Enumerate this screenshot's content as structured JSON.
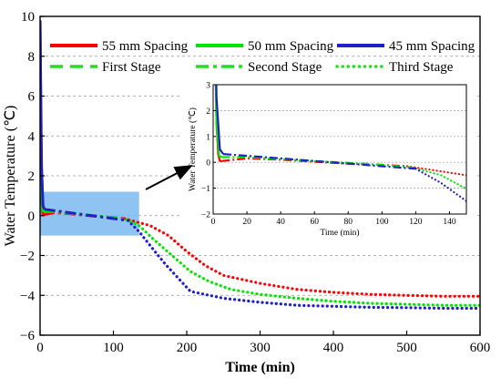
{
  "chart_data": [
    {
      "type": "line",
      "xlabel": "Time (min)",
      "ylabel": "Water Temperature (℃)",
      "xlim": [
        0,
        600
      ],
      "ylim": [
        -6,
        10
      ],
      "xticks": [
        0,
        100,
        200,
        300,
        400,
        500,
        600
      ],
      "yticks": [
        -6,
        -4,
        -2,
        0,
        2,
        4,
        6,
        8,
        10
      ],
      "grid": "horizontal dashed",
      "legend": {
        "placement": "top-right",
        "entries": [
          {
            "label": "55 mm Spacing",
            "color": "#ff0000",
            "style": "solid"
          },
          {
            "label": "50 mm Spacing",
            "color": "#00e600",
            "style": "solid"
          },
          {
            "label": "45 mm Spacing",
            "color": "#2020c8",
            "style": "solid"
          },
          {
            "label": "First Stage",
            "color": "#22dd22",
            "style": "dash"
          },
          {
            "label": "Second Stage",
            "color": "#22dd22",
            "style": "dashdot"
          },
          {
            "label": "Third Stage",
            "color": "#22dd22",
            "style": "dot"
          }
        ]
      },
      "highlight_region": {
        "x": [
          0,
          135
        ],
        "y": [
          -1,
          1.2
        ],
        "color": "#7ab8f0"
      },
      "series": [
        {
          "name": "55 mm Spacing",
          "color": "#ff0000",
          "first_stage": [
            [
              0,
              9.8
            ],
            [
              1,
              5
            ],
            [
              2,
              1.5
            ],
            [
              3,
              0.3
            ],
            [
              4,
              0.05
            ],
            [
              5,
              0.05
            ]
          ],
          "second_stage": [
            [
              5,
              0.05
            ],
            [
              20,
              0.15
            ],
            [
              40,
              0.1
            ],
            [
              60,
              0.02
            ],
            [
              80,
              -0.05
            ],
            [
              100,
              -0.1
            ],
            [
              115,
              -0.15
            ]
          ],
          "third_stage": [
            [
              115,
              -0.15
            ],
            [
              130,
              -0.3
            ],
            [
              150,
              -0.5
            ],
            [
              175,
              -1.0
            ],
            [
              200,
              -1.8
            ],
            [
              225,
              -2.5
            ],
            [
              250,
              -3.0
            ],
            [
              300,
              -3.4
            ],
            [
              350,
              -3.7
            ],
            [
              400,
              -3.85
            ],
            [
              450,
              -3.95
            ],
            [
              500,
              -4.0
            ],
            [
              550,
              -4.05
            ],
            [
              600,
              -4.05
            ]
          ]
        },
        {
          "name": "50 mm Spacing",
          "color": "#00e600",
          "first_stage": [
            [
              0,
              9.8
            ],
            [
              1,
              5
            ],
            [
              2,
              1.5
            ],
            [
              3.5,
              0.25
            ],
            [
              5,
              0.2
            ]
          ],
          "second_stage": [
            [
              5,
              0.2
            ],
            [
              20,
              0.2
            ],
            [
              40,
              0.12
            ],
            [
              60,
              0.05
            ],
            [
              80,
              -0.02
            ],
            [
              100,
              -0.1
            ],
            [
              118,
              -0.2
            ]
          ],
          "third_stage": [
            [
              118,
              -0.2
            ],
            [
              135,
              -0.5
            ],
            [
              155,
              -1.2
            ],
            [
              180,
              -2.0
            ],
            [
              205,
              -2.8
            ],
            [
              230,
              -3.3
            ],
            [
              260,
              -3.7
            ],
            [
              300,
              -3.95
            ],
            [
              350,
              -4.15
            ],
            [
              400,
              -4.3
            ],
            [
              450,
              -4.4
            ],
            [
              500,
              -4.45
            ],
            [
              550,
              -4.5
            ],
            [
              600,
              -4.5
            ]
          ]
        },
        {
          "name": "45 mm Spacing",
          "color": "#2020c8",
          "first_stage": [
            [
              0,
              9.8
            ],
            [
              1,
              6
            ],
            [
              2,
              2.5
            ],
            [
              4,
              0.5
            ],
            [
              6,
              0.32
            ]
          ],
          "second_stage": [
            [
              6,
              0.32
            ],
            [
              20,
              0.25
            ],
            [
              40,
              0.15
            ],
            [
              60,
              0.05
            ],
            [
              80,
              -0.05
            ],
            [
              100,
              -0.15
            ],
            [
              120,
              -0.25
            ]
          ],
          "third_stage": [
            [
              120,
              -0.25
            ],
            [
              135,
              -0.8
            ],
            [
              150,
              -1.5
            ],
            [
              170,
              -2.4
            ],
            [
              190,
              -3.2
            ],
            [
              205,
              -3.8
            ],
            [
              250,
              -4.15
            ],
            [
              300,
              -4.35
            ],
            [
              350,
              -4.5
            ],
            [
              400,
              -4.55
            ],
            [
              450,
              -4.6
            ],
            [
              500,
              -4.62
            ],
            [
              550,
              -4.65
            ],
            [
              600,
              -4.65
            ]
          ]
        }
      ]
    },
    {
      "type": "line",
      "inset": true,
      "xlabel": "Time (min)",
      "ylabel": "Water Temperature (℃)",
      "xlim": [
        0,
        150
      ],
      "ylim": [
        -2,
        3
      ],
      "xticks": [
        0,
        20,
        40,
        60,
        80,
        100,
        120,
        140
      ],
      "yticks": [
        -2,
        -1,
        0,
        1,
        2,
        3
      ],
      "grid": "horizontal dashed",
      "view_of_main": {
        "x": [
          0,
          135
        ],
        "y": [
          -1,
          1.2
        ]
      }
    }
  ]
}
